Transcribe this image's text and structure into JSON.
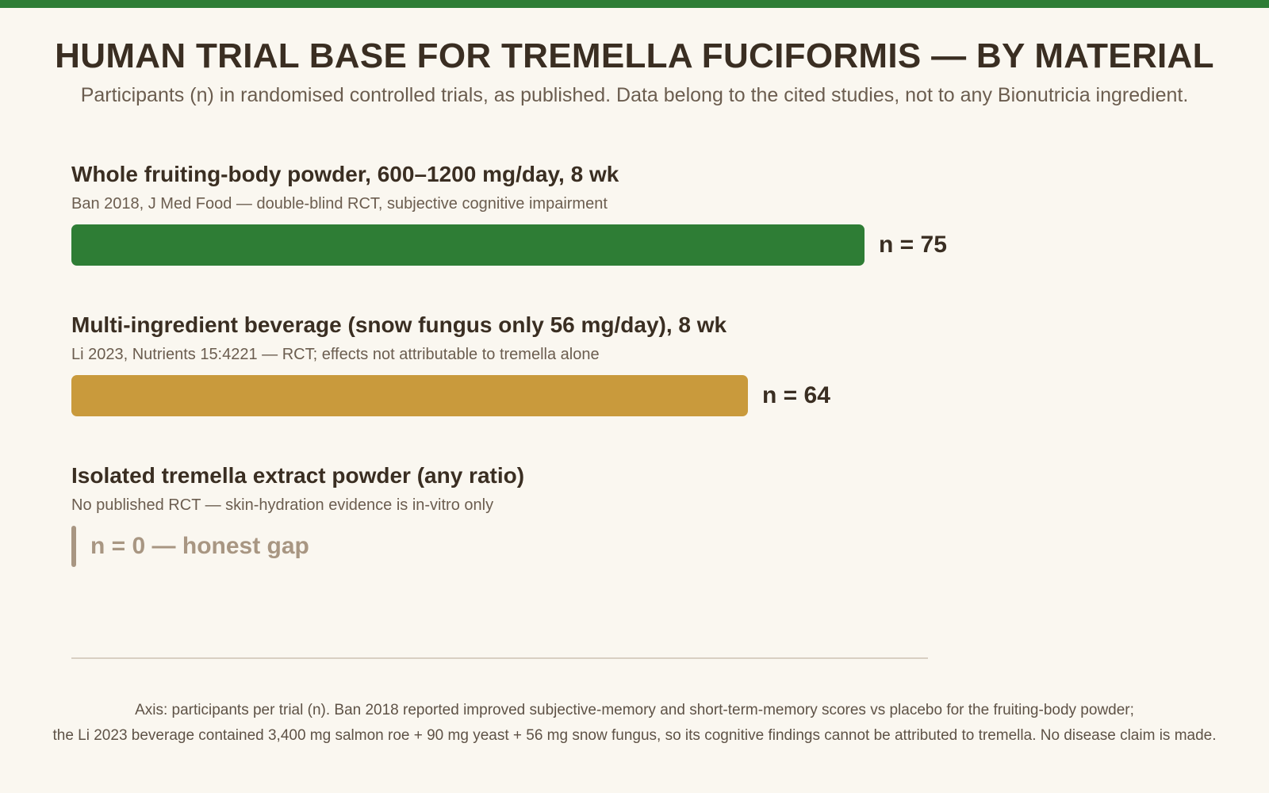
{
  "colors": {
    "top_band": "#2e7d35",
    "background": "#faf7f0",
    "gap": "#a89682"
  },
  "chart_data": {
    "type": "bar",
    "orientation": "horizontal",
    "title": "HUMAN TRIAL BASE FOR TREMELLA FUCIFORMIS — BY MATERIAL",
    "subtitle": "Participants (n) in randomised controlled trials, as published. Data belong to the cited studies, not to any Bionutricia ingredient.",
    "xlabel": "Axis: participants per trial (n).",
    "xlim": [
      0,
      81
    ],
    "categories": [
      "Whole fruiting-body powder, 600–1200 mg/day, 8 wk",
      "Multi-ingredient beverage (snow fungus only 56 mg/day), 8 wk",
      "Isolated tremella extract powder (any ratio)"
    ],
    "values": [
      75,
      64,
      0
    ],
    "bars": [
      {
        "label": "Whole fruiting-body powder, 600–1200 mg/day, 8 wk",
        "sublabel": "Ban 2018, J Med Food — double-blind RCT, subjective cognitive impairment",
        "value": 75,
        "value_label": "n = 75",
        "color": "#2e7d35"
      },
      {
        "label": "Multi-ingredient beverage (snow fungus only 56 mg/day), 8 wk",
        "sublabel": "Li 2023, Nutrients 15:4221 — RCT; effects not attributable to tremella alone",
        "value": 64,
        "value_label": "n = 64",
        "color": "#c99a3c"
      },
      {
        "label": "Isolated tremella extract powder (any ratio)",
        "sublabel": "No published RCT — skin-hydration evidence is in-vitro only",
        "value": 0,
        "value_label": "n = 0 — honest gap",
        "color": "#a89682"
      }
    ],
    "footnote": [
      "Axis: participants per trial (n). Ban 2018 reported improved subjective-memory and short-term-memory scores vs placebo for the fruiting-body powder;",
      "the Li 2023 beverage contained 3,400 mg salmon roe + 90 mg yeast + 56 mg snow fungus, so its cognitive findings cannot be attributed to tremella. No disease claim is made."
    ],
    "grid": false,
    "legend": "none"
  }
}
